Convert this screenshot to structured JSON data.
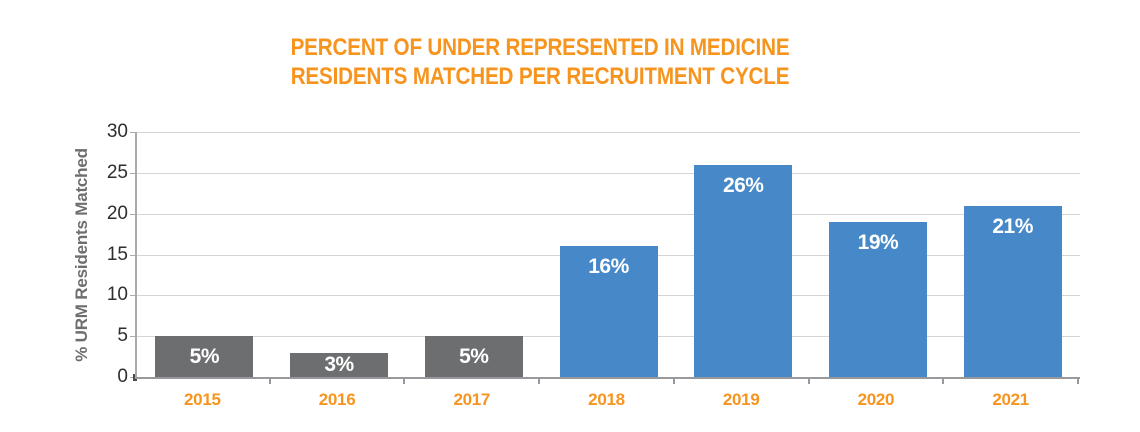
{
  "chart_data": {
    "type": "bar",
    "title_lines": [
      "PERCENT OF UNDER REPRESENTED IN MEDICINE",
      "RESIDENTS MATCHED PER RECRUITMENT CYCLE"
    ],
    "ylabel": "% URM Residents Matched",
    "xlabel": "",
    "categories": [
      "2015",
      "2016",
      "2017",
      "2018",
      "2019",
      "2020",
      "2021"
    ],
    "values": [
      5,
      3,
      5,
      16,
      26,
      19,
      21
    ],
    "bar_labels": [
      "5%",
      "3%",
      "5%",
      "16%",
      "26%",
      "19%",
      "21%"
    ],
    "bar_colors": [
      "#6D6E70",
      "#6D6E70",
      "#6D6E70",
      "#4789C8",
      "#4789C8",
      "#4789C8",
      "#4789C8"
    ],
    "yticks": [
      0,
      5,
      10,
      15,
      20,
      25,
      30
    ],
    "ylim": [
      0,
      30
    ],
    "grid": true,
    "legend": "none",
    "colors": {
      "title": "#F7941E",
      "xtick_label": "#F7941E",
      "ytick_label": "#2E2E2E",
      "ylabel": "#6D6E71",
      "gridline": "#D5D5D7",
      "axis_left": "#A8AAAD",
      "axis_bottom": "#97999C",
      "bar_value_label": "#FFFFFF",
      "gray_bar": "#6D6E70",
      "blue_bar": "#4789C8"
    }
  }
}
